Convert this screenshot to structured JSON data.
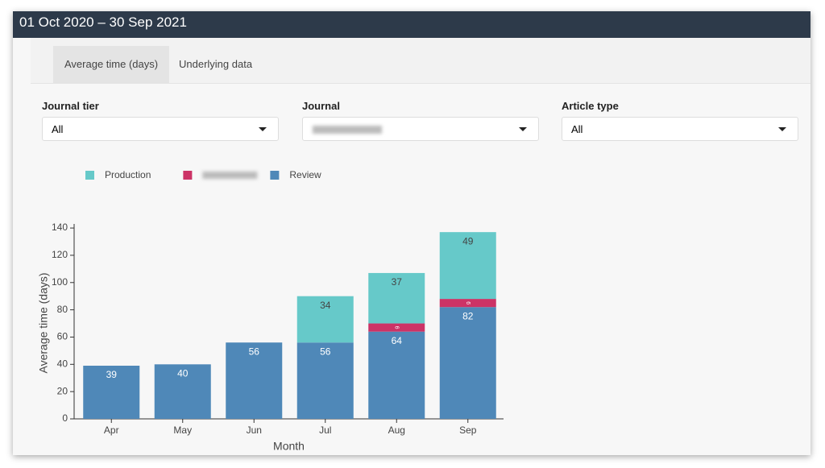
{
  "header": {
    "title": "01 Oct 2020 – 30 Sep 2021"
  },
  "tabs": [
    "Average time (days)",
    "Underlying data"
  ],
  "filters": [
    {
      "label": "Journal tier",
      "value": "All"
    },
    {
      "label": "Journal"
    },
    {
      "label": "Article type",
      "value": "All"
    }
  ],
  "chart_data": {
    "type": "bar",
    "stacked": true,
    "categories": [
      "Apr",
      "May",
      "Jun",
      "Jul",
      "Aug",
      "Sep"
    ],
    "series": [
      {
        "name": "Production",
        "color": "#66c9c9",
        "values": [
          null,
          null,
          null,
          34,
          37,
          49
        ]
      },
      {
        "color": "#cc3366",
        "values": [
          null,
          null,
          null,
          null,
          6,
          6
        ]
      },
      {
        "name": "Review",
        "color": "#4f88b8",
        "values": [
          39,
          40,
          56,
          56,
          64,
          82
        ]
      }
    ],
    "xlabel": "Month",
    "ylabel": "Average time (days)",
    "ylim": [
      0,
      143
    ],
    "yticks": [
      0,
      20,
      40,
      60,
      80,
      100,
      120,
      140
    ]
  }
}
